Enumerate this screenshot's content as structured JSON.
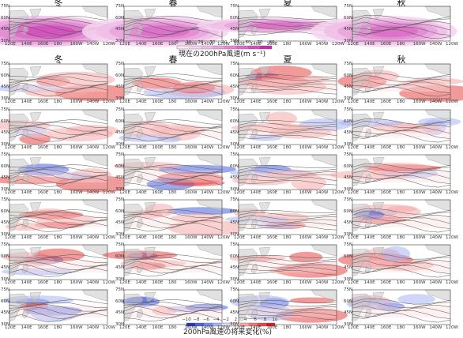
{
  "seasons": [
    "冬",
    "春",
    "夏",
    "秋"
  ],
  "lat_labels": [
    "75N",
    "60N",
    "45N",
    "30N"
  ],
  "lon_labels": [
    "120E",
    "140E",
    "160E",
    "180",
    "160W",
    "140W",
    "120W"
  ],
  "colorbar_present": {
    "title": "現在の200hPa風速(m s⁻¹)",
    "ticks": [
      "0",
      "10",
      "20",
      "30",
      "40",
      "50",
      "60",
      "70",
      "80"
    ],
    "colors": [
      "#fbe9f6",
      "#f6d3ee",
      "#f0bde6",
      "#e9a5dc",
      "#e28bd2",
      "#da6fc7",
      "#d24fbb",
      "#c92aae"
    ]
  },
  "colorbar_change": {
    "title": "200hPa風速の将来変化(%)",
    "ticks": [
      "−10",
      "−8",
      "−6",
      "−4",
      "−2",
      "2",
      "4",
      "6",
      "8",
      "10"
    ],
    "colors": [
      "#1f35c9",
      "#4a61dc",
      "#7a8ce8",
      "#a9b4f1",
      "#d3d8f8",
      "#fbd6d6",
      "#f6a8a8",
      "#ef7878",
      "#e54747",
      "#d81b1b"
    ]
  },
  "colors": {
    "land": "#c9c9c9",
    "contour": "#555555",
    "present_accent": "#c92aae",
    "increase": "#d81b1b",
    "decrease": "#1f35c9"
  }
}
